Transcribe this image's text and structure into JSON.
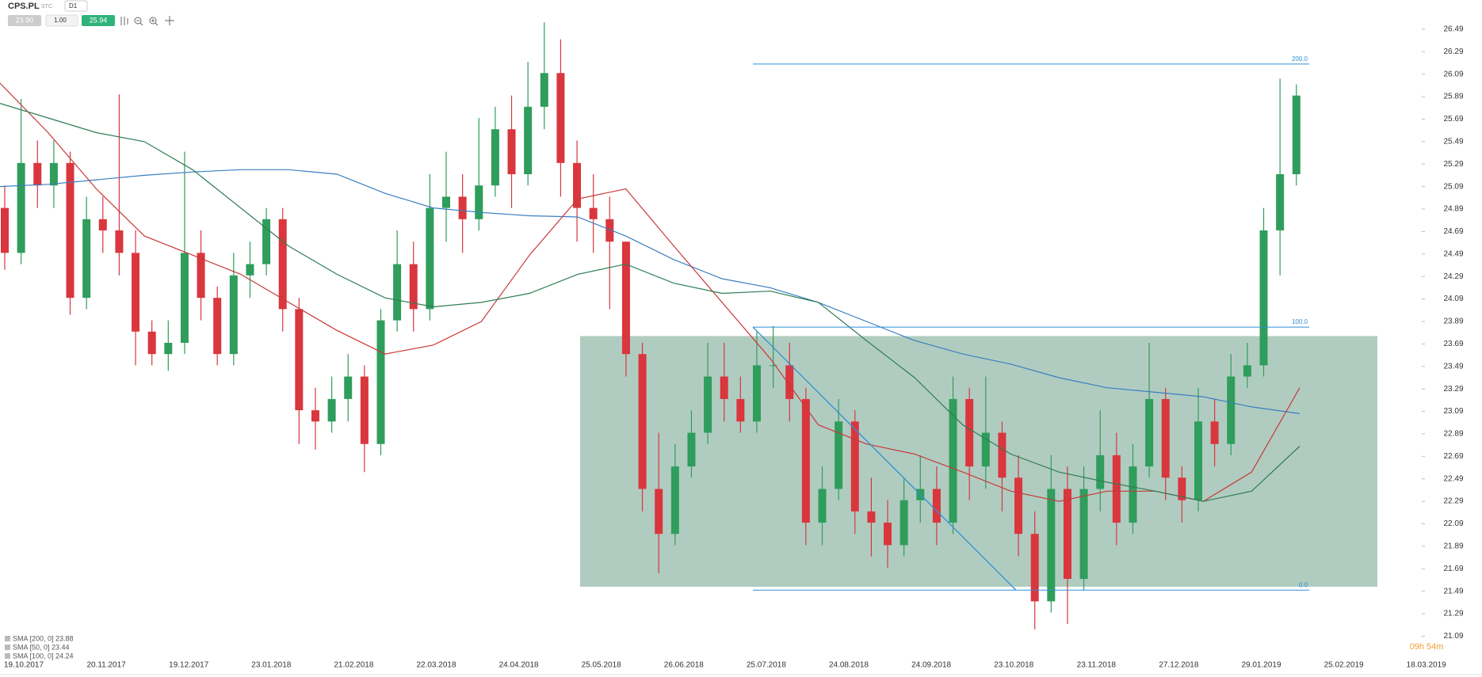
{
  "header": {
    "symbol": "CPS.PL",
    "market": "STC",
    "interval": "D1",
    "bid": "23.90",
    "volume": "1.00",
    "ask": "25.94"
  },
  "chart_data": {
    "type": "candlestick",
    "ylim": [
      20.91,
      26.75
    ],
    "yticks": [
      21.09,
      21.29,
      21.49,
      21.69,
      21.89,
      22.09,
      22.29,
      22.49,
      22.69,
      22.89,
      23.09,
      23.29,
      23.49,
      23.69,
      23.89,
      24.09,
      24.29,
      24.49,
      24.69,
      24.89,
      25.09,
      25.29,
      25.49,
      25.69,
      25.89,
      26.09,
      26.29,
      26.49
    ],
    "x_labels": [
      "19.10.2017",
      "20.11.2017",
      "19.12.2017",
      "23.01.2018",
      "21.02.2018",
      "22.03.2018",
      "24.04.2018",
      "25.05.2018",
      "26.06.2018",
      "25.07.2018",
      "24.08.2018",
      "24.09.2018",
      "23.10.2018",
      "23.11.2018",
      "27.12.2018",
      "29.01.2019",
      "25.02.2019",
      "18.03.2019"
    ],
    "up_color": "#2f9d5c",
    "down_color": "#d9363e",
    "open": [
      24.9,
      24.5,
      25.3,
      25.1,
      25.3,
      24.1,
      24.8,
      24.7,
      24.5,
      23.8,
      23.6,
      23.7,
      24.5,
      24.1,
      23.6,
      24.3,
      24.4,
      24.8,
      24.0,
      23.1,
      23.0,
      23.2,
      23.4,
      22.8,
      23.9,
      24.4,
      24.0,
      24.9,
      25.0,
      24.8,
      25.1,
      25.6,
      25.2,
      25.8,
      26.1,
      25.3,
      24.9,
      24.8,
      24.6,
      23.6,
      22.4,
      22.0,
      22.6,
      22.9,
      23.4,
      23.2,
      23.0,
      23.5,
      23.5,
      23.2,
      22.1,
      22.4,
      23.0,
      22.2,
      22.1,
      21.9,
      22.3,
      22.4,
      22.1,
      23.2,
      22.6,
      22.9,
      22.5,
      22.0,
      21.4,
      22.4,
      21.6,
      22.4,
      22.7,
      22.1,
      22.6,
      23.2,
      22.5,
      22.3,
      23.0,
      22.8,
      23.4,
      23.5,
      24.7,
      25.2
    ],
    "high": [
      25.1,
      25.87,
      25.5,
      25.5,
      25.4,
      25.0,
      25.0,
      25.91,
      24.7,
      23.9,
      23.9,
      25.4,
      24.7,
      24.2,
      24.5,
      24.6,
      24.9,
      24.9,
      24.1,
      23.3,
      23.4,
      23.6,
      23.5,
      24.0,
      24.7,
      24.6,
      25.2,
      25.4,
      25.2,
      25.7,
      25.8,
      25.9,
      26.2,
      26.55,
      26.4,
      25.5,
      25.2,
      25.0,
      24.6,
      23.7,
      22.9,
      22.8,
      23.1,
      23.7,
      23.7,
      23.4,
      23.8,
      23.85,
      23.7,
      23.3,
      22.6,
      23.2,
      23.1,
      22.5,
      22.3,
      22.5,
      22.7,
      22.6,
      23.4,
      23.3,
      23.4,
      23.0,
      22.7,
      22.2,
      22.7,
      22.6,
      22.6,
      23.1,
      22.9,
      22.8,
      23.7,
      23.3,
      22.6,
      23.3,
      23.2,
      23.6,
      23.7,
      24.9,
      26.05,
      26.0
    ],
    "low": [
      24.35,
      24.4,
      24.9,
      24.9,
      23.95,
      24.0,
      24.5,
      24.3,
      23.5,
      23.5,
      23.45,
      23.6,
      23.9,
      23.5,
      23.5,
      24.1,
      24.3,
      23.8,
      22.8,
      22.75,
      22.9,
      23.0,
      22.55,
      22.7,
      23.8,
      23.8,
      23.9,
      24.6,
      24.5,
      24.7,
      25.0,
      24.9,
      25.1,
      25.6,
      25.0,
      24.6,
      24.5,
      24.0,
      23.4,
      22.2,
      21.65,
      21.9,
      22.5,
      22.8,
      23.0,
      22.9,
      22.9,
      23.3,
      23.0,
      21.9,
      21.9,
      22.3,
      22.0,
      21.8,
      21.7,
      21.8,
      22.1,
      21.9,
      22.0,
      22.3,
      22.4,
      22.2,
      21.8,
      21.15,
      21.3,
      21.2,
      21.5,
      22.2,
      21.9,
      22.0,
      22.5,
      22.3,
      22.1,
      22.2,
      22.6,
      22.7,
      23.3,
      23.4,
      24.3,
      25.1
    ],
    "close": [
      24.5,
      25.3,
      25.1,
      25.3,
      24.1,
      24.8,
      24.7,
      24.5,
      23.8,
      23.6,
      23.7,
      24.5,
      24.1,
      23.6,
      24.3,
      24.4,
      24.8,
      24.0,
      23.1,
      23.0,
      23.2,
      23.4,
      22.8,
      23.9,
      24.4,
      24.0,
      24.9,
      25.0,
      24.8,
      25.1,
      25.6,
      25.2,
      25.8,
      26.1,
      25.3,
      24.9,
      24.8,
      24.6,
      23.6,
      22.4,
      22.0,
      22.6,
      22.9,
      23.4,
      23.2,
      23.0,
      23.5,
      23.5,
      23.2,
      22.1,
      22.4,
      23.0,
      22.2,
      22.1,
      21.9,
      22.3,
      22.4,
      22.1,
      23.2,
      22.6,
      22.9,
      22.5,
      22.0,
      21.4,
      22.4,
      21.6,
      22.4,
      22.7,
      22.1,
      22.6,
      23.2,
      22.5,
      22.3,
      23.0,
      22.8,
      23.4,
      23.5,
      24.7,
      25.2,
      25.9
    ],
    "series": [
      {
        "name": "SMA [200, 0] 23.88",
        "color": "#3a7fc1",
        "values": [
          25.09,
          25.11,
          25.15,
          25.19,
          25.22,
          25.24,
          25.24,
          25.2,
          25.03,
          24.9,
          24.86,
          24.83,
          24.82,
          24.65,
          24.44,
          24.27,
          24.19,
          24.06,
          23.89,
          23.72,
          23.6,
          23.51,
          23.39,
          23.3,
          23.26,
          23.22,
          23.13,
          23.07
        ]
      },
      {
        "name": "SMA [50, 0] 23.44",
        "color": "#c8393b",
        "values": [
          26.01,
          25.57,
          25.07,
          24.65,
          24.48,
          24.31,
          24.06,
          23.81,
          23.6,
          23.68,
          23.89,
          24.48,
          24.98,
          25.07,
          24.56,
          24.06,
          23.56,
          22.97,
          22.8,
          22.71,
          22.55,
          22.38,
          22.29,
          22.38,
          22.38,
          22.29,
          22.55,
          23.3
        ]
      },
      {
        "name": "SMA [100, 0] 24.24",
        "color": "#2e7d55",
        "values": [
          25.83,
          25.7,
          25.57,
          25.49,
          25.24,
          24.9,
          24.56,
          24.31,
          24.1,
          24.02,
          24.06,
          24.14,
          24.31,
          24.4,
          24.23,
          24.14,
          24.16,
          24.06,
          23.72,
          23.39,
          22.97,
          22.71,
          22.55,
          22.46,
          22.38,
          22.29,
          22.38,
          22.78
        ]
      }
    ],
    "zone": [
      21.53,
      23.76
    ],
    "zone_color": "#4f8f73",
    "fibonacci": [
      {
        "level": "200.0",
        "price": 26.18
      },
      {
        "level": "100.0",
        "price": 23.84
      },
      {
        "level": "0.0",
        "price": 21.5
      }
    ],
    "fib_color": "#2f8fd8",
    "timer": "09h 54m"
  }
}
